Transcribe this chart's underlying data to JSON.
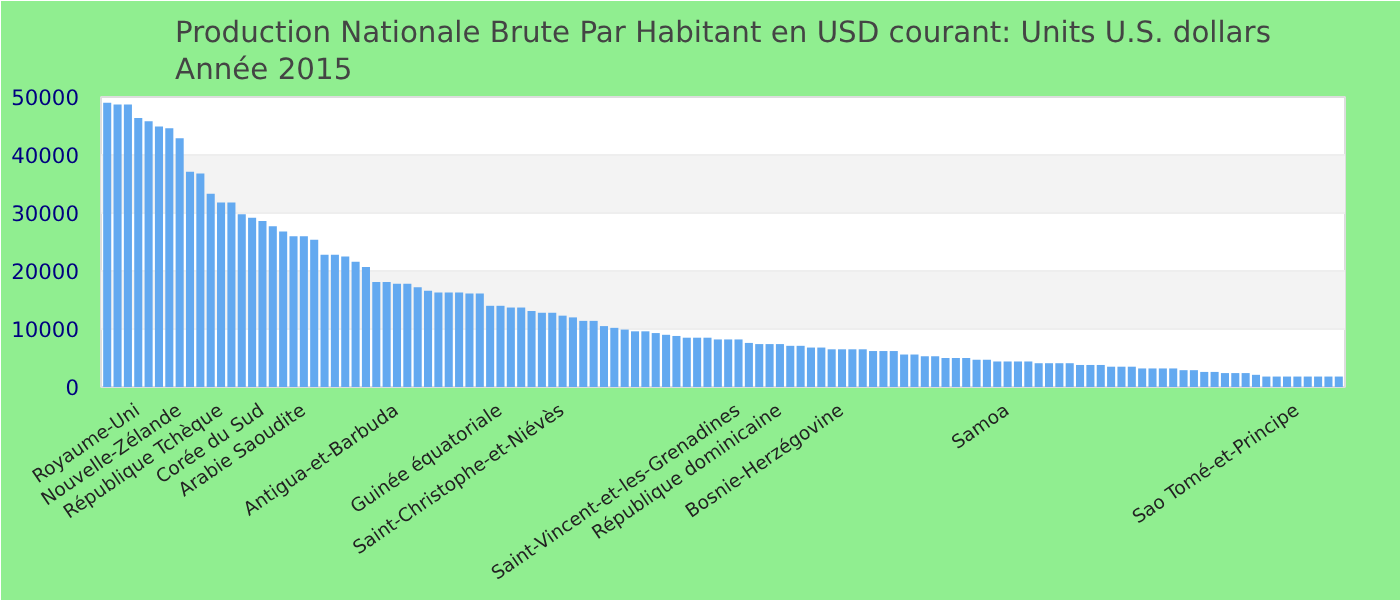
{
  "chart_data": {
    "type": "bar",
    "title": "Production Nationale Brute Par Habitant en USD courant: Units U.S. dollars\nAnnée 2015",
    "categories": [
      null,
      null,
      null,
      "Royaume-Uni",
      null,
      null,
      null,
      "Nouvelle-Zélande",
      null,
      null,
      null,
      "République Tchèque",
      null,
      null,
      null,
      "Corée du Sud",
      null,
      null,
      null,
      "Arabie Saoudite",
      null,
      null,
      null,
      null,
      null,
      null,
      null,
      null,
      "Antigua-et-Barbuda",
      null,
      null,
      null,
      null,
      null,
      null,
      null,
      null,
      null,
      "Guinée équatoriale",
      null,
      null,
      null,
      null,
      null,
      "Saint-Christophe-et-Niévès",
      null,
      null,
      null,
      null,
      null,
      null,
      null,
      null,
      null,
      null,
      null,
      null,
      null,
      null,
      null,
      null,
      "Saint-Vincent-et-les-Grenadines",
      null,
      null,
      null,
      "République dominicaine",
      null,
      null,
      null,
      null,
      null,
      "Bosnie-Herzégovine",
      null,
      null,
      null,
      null,
      null,
      null,
      null,
      null,
      null,
      null,
      null,
      null,
      null,
      null,
      null,
      "Samoa",
      null,
      null,
      null,
      null,
      null,
      null,
      null,
      null,
      null,
      null,
      null,
      null,
      null,
      null,
      null,
      null,
      null,
      null,
      null,
      null,
      null,
      null,
      null,
      null,
      null,
      null,
      null,
      "Sao Tomé-et-Principe",
      null,
      null,
      null,
      null
    ],
    "values": [
      49000,
      48700,
      48700,
      46400,
      45800,
      44900,
      44600,
      42900,
      37100,
      36800,
      33300,
      31800,
      31800,
      29800,
      29200,
      28600,
      27700,
      26800,
      26000,
      26000,
      25400,
      22800,
      22800,
      22500,
      21600,
      20700,
      18100,
      18100,
      17800,
      17800,
      17200,
      16600,
      16300,
      16300,
      16300,
      16100,
      16100,
      14000,
      14000,
      13700,
      13700,
      13100,
      12800,
      12800,
      12300,
      12000,
      11400,
      11400,
      10500,
      10200,
      9900,
      9600,
      9600,
      9300,
      9000,
      8800,
      8500,
      8500,
      8500,
      8200,
      8200,
      8200,
      7600,
      7400,
      7400,
      7400,
      7100,
      7100,
      6800,
      6800,
      6500,
      6500,
      6500,
      6500,
      6200,
      6200,
      6200,
      5600,
      5600,
      5300,
      5300,
      5000,
      5000,
      5000,
      4700,
      4700,
      4400,
      4400,
      4400,
      4400,
      4100,
      4100,
      4100,
      4100,
      3800,
      3800,
      3800,
      3500,
      3500,
      3500,
      3200,
      3200,
      3200,
      3200,
      2900,
      2900,
      2600,
      2600,
      2400,
      2400,
      2400,
      2100,
      1800,
      1800,
      1800,
      1800,
      1800,
      1800,
      1800,
      1800
    ],
    "color": "#63a9f0",
    "ylim": [
      0,
      50000
    ],
    "yticks": [
      0,
      10000,
      20000,
      30000,
      40000,
      50000
    ],
    "grid": "y"
  }
}
